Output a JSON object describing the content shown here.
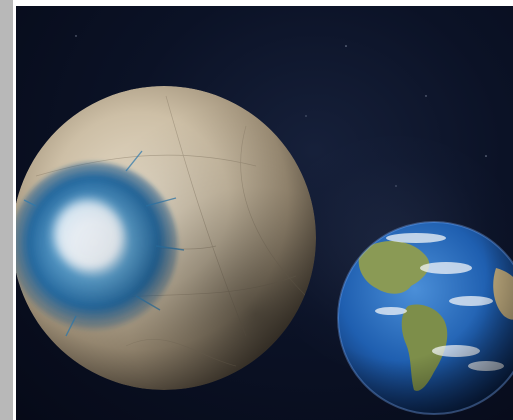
{
  "image": {
    "subject": "planets-comparison",
    "background_color": "#0b1226",
    "large_planet": {
      "name": "ice-planet",
      "base_color": "#cdbfa6",
      "ocean_color": "#2a79b0"
    },
    "small_planet": {
      "name": "earth",
      "ocean_color": "#1f5fb0",
      "land_color": "#8a9a55",
      "cloud_color": "#f2f5f8"
    },
    "frame_color": "#b8b8b8"
  }
}
